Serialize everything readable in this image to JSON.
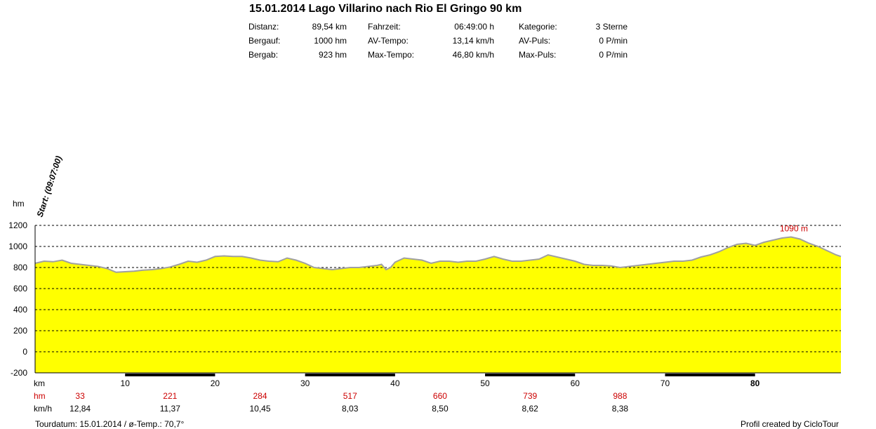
{
  "header": {
    "title": "15.01.2014 Lago Villarino nach Rio El Gringo 90 km",
    "stats": [
      {
        "label": "Distanz:",
        "value": "89,54 km"
      },
      {
        "label": "Bergauf:",
        "value": "1000 hm"
      },
      {
        "label": "Bergab:",
        "value": "923 hm"
      },
      {
        "label": "Fahrzeit:",
        "value": "06:49:00 h"
      },
      {
        "label": "AV-Tempo:",
        "value": "13,14 km/h"
      },
      {
        "label": "Max-Tempo:",
        "value": "46,80 km/h"
      },
      {
        "label": "Kategorie:",
        "value": "3 Sterne"
      },
      {
        "label": "AV-Puls:",
        "value": "0 P/min"
      },
      {
        "label": "Max-Puls:",
        "value": "0 P/min"
      }
    ]
  },
  "chart_data": {
    "type": "area",
    "ylabel": "hm",
    "xlabel": "km",
    "ylim": [
      -200,
      1200
    ],
    "xlim": [
      0,
      89.54
    ],
    "yticks": [
      -200,
      0,
      200,
      400,
      600,
      800,
      1000,
      1200
    ],
    "xticks": [
      10,
      20,
      30,
      40,
      50,
      60,
      70,
      80
    ],
    "grid": true,
    "fill_color": "#ffff00",
    "line_color": "#a0a0a0",
    "start_label": "Start: (09:07:00)",
    "max_label": "1090 m",
    "max_point": {
      "x": 84,
      "y": 1090
    },
    "x": [
      0,
      1,
      2,
      3,
      4,
      5,
      6,
      7,
      8,
      9,
      10,
      11,
      12,
      13,
      14,
      15,
      16,
      17,
      18,
      19,
      20,
      21,
      22,
      23,
      24,
      25,
      26,
      27,
      28,
      29,
      30,
      31,
      32,
      33,
      34,
      35,
      36,
      37,
      38,
      38.5,
      39,
      39.5,
      40,
      41,
      42,
      43,
      44,
      45,
      46,
      47,
      48,
      49,
      50,
      51,
      52,
      53,
      54,
      55,
      56,
      57,
      58,
      59,
      60,
      61,
      62,
      63,
      64,
      65,
      66,
      67,
      68,
      69,
      70,
      71,
      72,
      73,
      74,
      75,
      76,
      77,
      78,
      79,
      80,
      81,
      82,
      83,
      84,
      85,
      86,
      87,
      88,
      89,
      89.54
    ],
    "y": [
      840,
      860,
      855,
      870,
      840,
      830,
      820,
      810,
      790,
      755,
      760,
      765,
      775,
      780,
      790,
      805,
      830,
      860,
      850,
      870,
      905,
      910,
      905,
      905,
      890,
      870,
      860,
      855,
      890,
      870,
      840,
      800,
      790,
      780,
      790,
      800,
      800,
      810,
      820,
      830,
      780,
      800,
      850,
      890,
      880,
      870,
      840,
      860,
      860,
      850,
      860,
      860,
      880,
      905,
      880,
      860,
      860,
      870,
      880,
      920,
      900,
      880,
      860,
      830,
      820,
      820,
      815,
      800,
      810,
      820,
      830,
      840,
      850,
      860,
      860,
      870,
      900,
      920,
      950,
      990,
      1020,
      1030,
      1010,
      1040,
      1060,
      1080,
      1090,
      1070,
      1030,
      1000,
      960,
      920,
      905
    ],
    "bottom_rows": {
      "hm_label": "hm",
      "kmh_label": "km/h",
      "hm": [
        "33",
        "221",
        "284",
        "517",
        "660",
        "739",
        "988"
      ],
      "kmh": [
        "12,84",
        "11,37",
        "10,45",
        "8,03",
        "8,50",
        "8,62",
        "8,38"
      ]
    }
  },
  "footer": {
    "left": "Tourdatum: 15.01.2014  /  ø-Temp.: 70,7°",
    "right": "Profil created by CicloTour"
  }
}
